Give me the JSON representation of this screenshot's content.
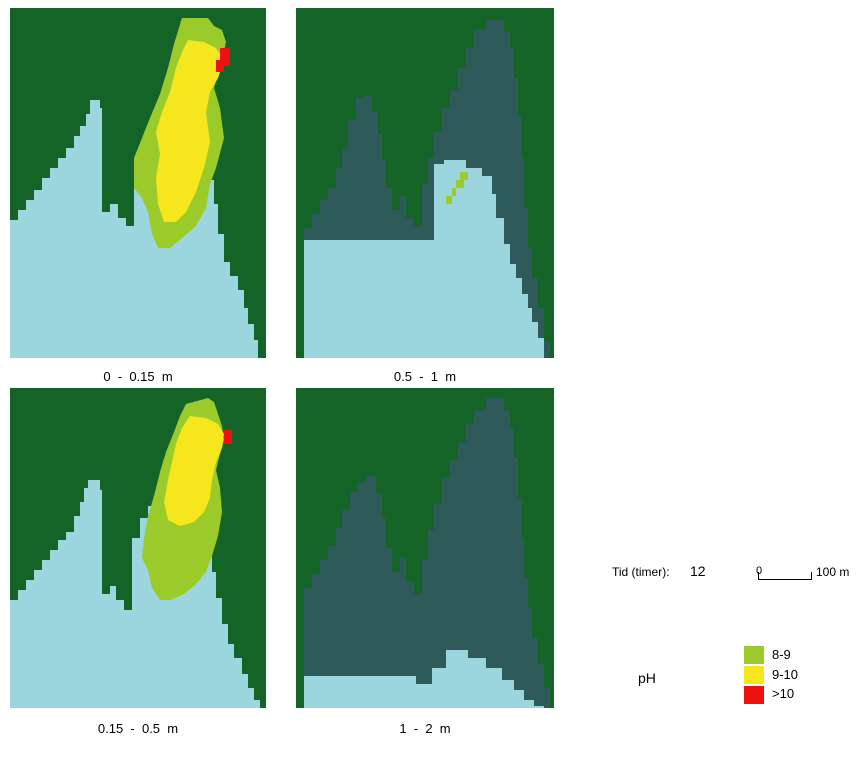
{
  "colors": {
    "land": "#146428",
    "shallow_water": "#9bd6df",
    "deep_water": "#2e5a5a",
    "ph_8_9": "#9acb2a",
    "ph_9_10": "#f5e61e",
    "ph_gt_10": "#ee1111"
  },
  "panels": [
    {
      "label": "0  -  0.15  m"
    },
    {
      "label": "0.5  -  1  m"
    },
    {
      "label": "0.15  -  0.5  m"
    },
    {
      "label": "1  -  2  m"
    }
  ],
  "info": {
    "time_label": "Tid (timer):",
    "time_value": "12",
    "scale_start": "0",
    "scale_end": "100 m"
  },
  "legend": {
    "title": "pH",
    "items": [
      {
        "label": "8-9",
        "color": "#9acb2a"
      },
      {
        "label": "9-10",
        "color": "#f5e61e"
      },
      {
        "label": ">10",
        "color": "#ee1111"
      }
    ]
  }
}
